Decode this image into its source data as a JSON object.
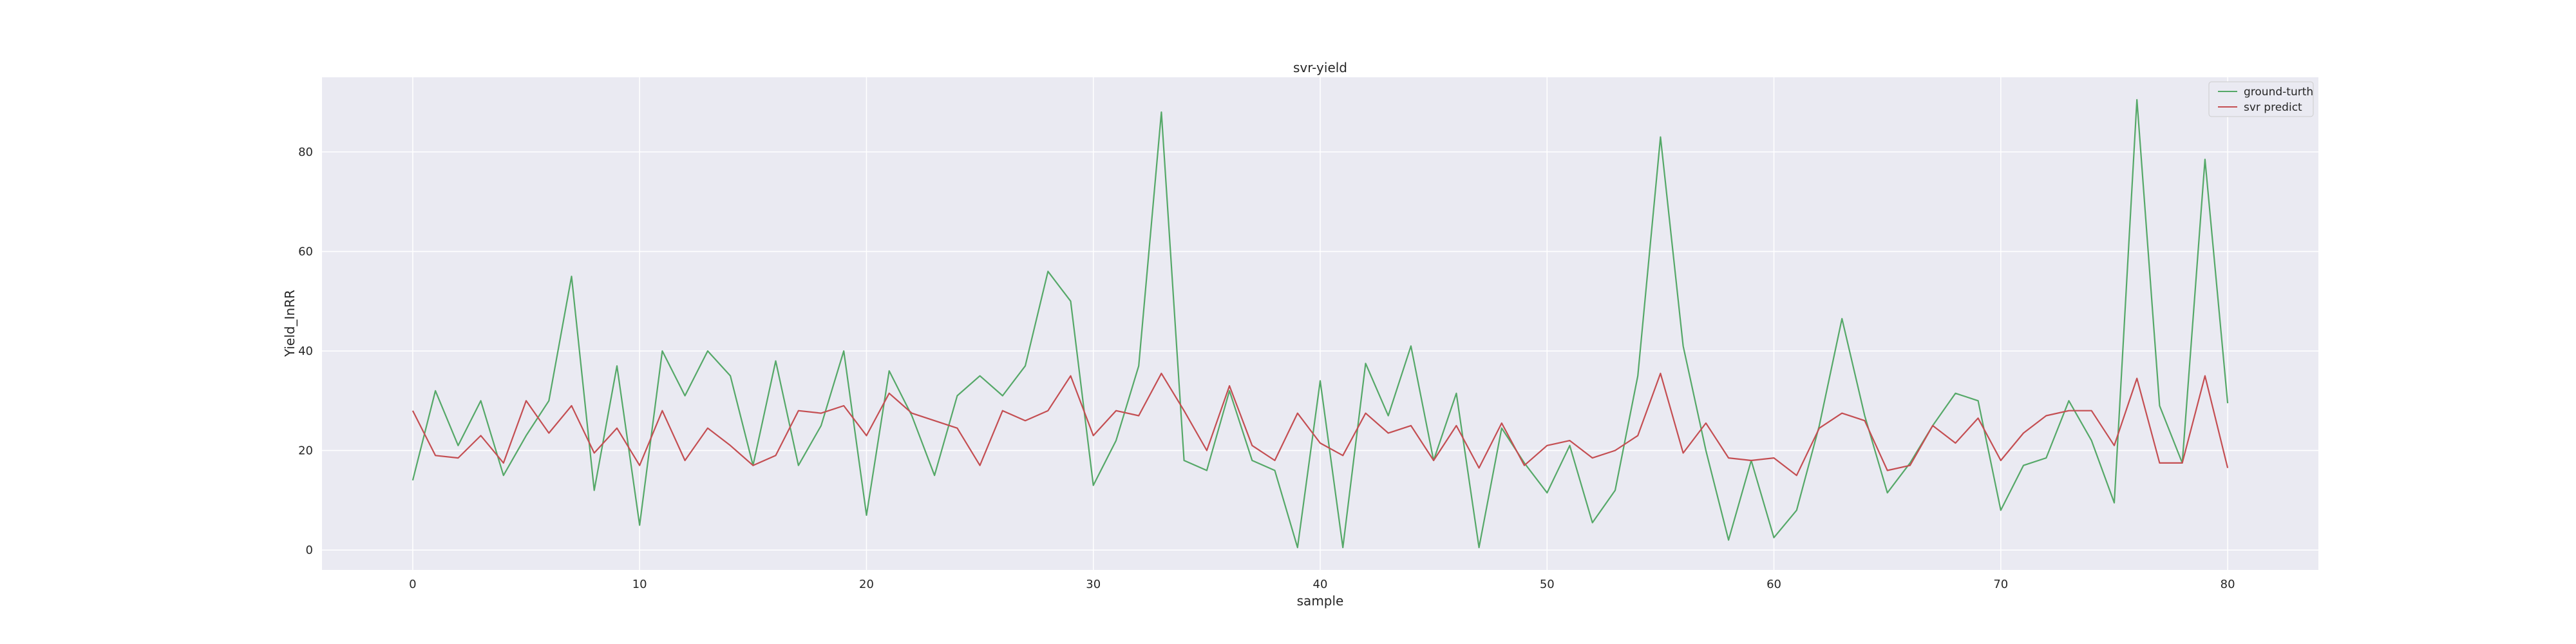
{
  "chart_data": {
    "type": "line",
    "title": "svr-yield",
    "xlabel": "sample",
    "ylabel": "Yield_InRR",
    "xlim": [
      -4,
      84
    ],
    "ylim": [
      -4,
      95
    ],
    "xticks": [
      0,
      10,
      20,
      30,
      40,
      50,
      60,
      70,
      80
    ],
    "yticks": [
      0,
      20,
      40,
      60,
      80
    ],
    "grid": true,
    "legend_position": "top-right",
    "background": "#eaeaf2",
    "series": [
      {
        "name": "ground-turth",
        "color": "#55a868",
        "values": [
          14,
          32,
          21,
          30,
          15,
          23,
          30,
          55,
          12,
          37,
          5,
          40,
          31,
          40,
          35,
          17,
          38,
          17,
          25,
          40,
          7,
          36,
          27,
          15,
          31,
          35,
          31,
          37,
          56,
          50,
          13,
          22,
          37,
          88,
          18,
          16,
          32,
          18,
          16,
          0.5,
          34,
          0.5,
          37.5,
          27,
          41,
          18,
          31.5,
          0.5,
          24.5,
          17.5,
          11.5,
          21,
          5.5,
          12,
          35,
          83,
          41,
          20,
          2,
          18,
          2.5,
          8,
          25,
          46.5,
          27,
          11.5,
          17.5,
          25,
          31.5,
          30,
          8,
          17,
          18.5,
          30,
          22,
          9.5,
          90.5,
          29,
          17.5,
          78.5,
          29.5
        ]
      },
      {
        "name": "svr predict",
        "color": "#c44e52",
        "values": [
          28,
          19,
          18.5,
          23,
          17.5,
          30,
          23.5,
          29,
          19.5,
          24.5,
          17,
          28,
          18,
          24.5,
          21,
          17,
          19,
          28,
          27.5,
          29,
          23,
          31.5,
          27.5,
          26,
          24.5,
          17,
          28,
          26,
          28,
          35,
          23,
          28,
          27,
          35.5,
          28,
          20,
          33,
          21,
          18,
          27.5,
          21.5,
          19,
          27.5,
          23.5,
          25,
          18,
          25,
          16.5,
          25.5,
          17,
          21,
          22,
          18.5,
          20,
          23,
          35.5,
          19.5,
          25.5,
          18.5,
          18,
          18.5,
          15,
          24.5,
          27.5,
          26,
          16,
          17,
          25,
          21.5,
          26.5,
          18,
          23.5,
          27,
          28,
          28,
          21,
          34.5,
          17.5,
          17.5,
          35,
          16.5
        ]
      }
    ]
  }
}
